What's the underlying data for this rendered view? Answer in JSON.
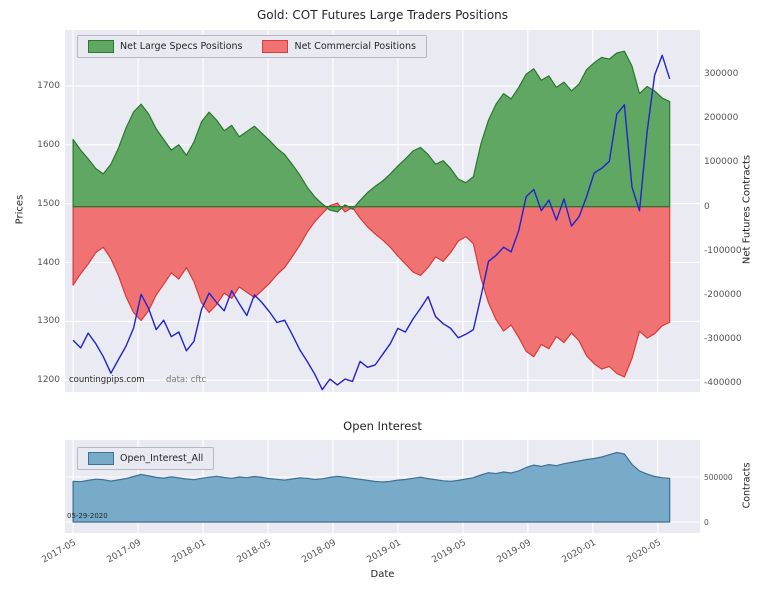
{
  "figure": {
    "title": "Gold: COT Futures Large Traders Positions",
    "subplot2_title": "Open Interest",
    "xlabel": "Date",
    "ylabel_left": "Prices",
    "ylabel_right": "Net Futures Contracts",
    "ylabel_right2": "Contracts",
    "watermark": "countingpips.com",
    "source_note": "data: cftc",
    "date_annotation": "05-29-2020"
  },
  "legend1": [
    "Net Large Specs Positions",
    "Net Commercial Positions"
  ],
  "legend2": [
    "Open_Interest_All"
  ],
  "colors": {
    "plot_bg": "#eaeaf2",
    "grid": "#ffffff",
    "specs_fill": "#5fa763",
    "specs_edge": "#29782d",
    "comm_fill": "#f17272",
    "comm_edge": "#d93a3a",
    "price_line": "#2323cc",
    "oi_fill": "#78aac9",
    "oi_edge": "#3d7096",
    "legend_bg": "#e9e9f1",
    "legend_border": "#b8b8c0",
    "tick_text": "#555555"
  },
  "chart_data": [
    {
      "type": "area",
      "title": "Gold: COT Futures Large Traders Positions",
      "x_unit": "months since 2017-05",
      "x_step_months": 0.465,
      "xlim_months": [
        -0.5,
        38.6
      ],
      "x_tick_positions_months": [
        0,
        4,
        8,
        12,
        16,
        20,
        24,
        28,
        32,
        36
      ],
      "x_tick_labels": [
        "2017-05",
        "2017-09",
        "2018-01",
        "2018-05",
        "2018-09",
        "2019-01",
        "2019-05",
        "2019-09",
        "2020-01",
        "2020-05"
      ],
      "left_axis": {
        "label": "Prices",
        "ylim": [
          1180,
          1795
        ],
        "ticks": [
          1200,
          1300,
          1400,
          1500,
          1600,
          1700
        ]
      },
      "right_axis": {
        "label": "Net Futures Contracts",
        "ylim": [
          -420000,
          400000
        ],
        "ticks": [
          -400000,
          -300000,
          -200000,
          -100000,
          0,
          100000,
          200000,
          300000
        ]
      },
      "annotations": [
        "countingpips.com",
        "data: cftc"
      ],
      "series": [
        {
          "name": "Net Commercial Positions",
          "type": "area",
          "axis": "right",
          "color_key": "comm",
          "values": [
            -178000,
            -152000,
            -130000,
            -104000,
            -92000,
            -118000,
            -156000,
            -204000,
            -240000,
            -258000,
            -236000,
            -200000,
            -176000,
            -150000,
            -164000,
            -138000,
            -170000,
            -218000,
            -240000,
            -222000,
            -196000,
            -208000,
            -182000,
            -194000,
            -206000,
            -190000,
            -174000,
            -154000,
            -138000,
            -114000,
            -88000,
            -58000,
            -34000,
            -16000,
            2000,
            8000,
            -12000,
            -2000,
            -26000,
            -46000,
            -62000,
            -76000,
            -92000,
            -112000,
            -130000,
            -148000,
            -156000,
            -138000,
            -114000,
            -124000,
            -104000,
            -78000,
            -68000,
            -84000,
            -162000,
            -218000,
            -256000,
            -282000,
            -268000,
            -296000,
            -328000,
            -340000,
            -312000,
            -322000,
            -294000,
            -308000,
            -286000,
            -304000,
            -338000,
            -356000,
            -368000,
            -362000,
            -378000,
            -386000,
            -344000,
            -282000,
            -298000,
            -288000,
            -270000,
            -262000
          ]
        },
        {
          "name": "Net Large Specs Positions",
          "type": "area",
          "axis": "right",
          "color_key": "specs",
          "values": [
            152000,
            128000,
            108000,
            86000,
            74000,
            96000,
            132000,
            178000,
            214000,
            232000,
            210000,
            176000,
            152000,
            128000,
            140000,
            116000,
            146000,
            192000,
            214000,
            196000,
            172000,
            184000,
            158000,
            170000,
            182000,
            166000,
            150000,
            132000,
            118000,
            96000,
            72000,
            44000,
            22000,
            6000,
            -8000,
            -12000,
            4000,
            -6000,
            14000,
            32000,
            46000,
            58000,
            74000,
            92000,
            108000,
            126000,
            134000,
            118000,
            96000,
            104000,
            86000,
            62000,
            54000,
            68000,
            142000,
            196000,
            232000,
            256000,
            244000,
            270000,
            300000,
            312000,
            286000,
            296000,
            270000,
            282000,
            262000,
            278000,
            310000,
            326000,
            338000,
            334000,
            348000,
            352000,
            318000,
            256000,
            272000,
            262000,
            246000,
            238000
          ]
        },
        {
          "name": "Gold Price",
          "type": "line",
          "axis": "left",
          "color_key": "price_line",
          "values": [
            1268,
            1255,
            1280,
            1262,
            1240,
            1212,
            1235,
            1258,
            1288,
            1346,
            1322,
            1286,
            1302,
            1274,
            1282,
            1250,
            1266,
            1320,
            1348,
            1332,
            1318,
            1352,
            1330,
            1310,
            1345,
            1332,
            1316,
            1298,
            1302,
            1278,
            1252,
            1232,
            1210,
            1184,
            1202,
            1192,
            1202,
            1198,
            1232,
            1222,
            1226,
            1244,
            1262,
            1288,
            1282,
            1304,
            1322,
            1342,
            1308,
            1296,
            1288,
            1272,
            1278,
            1286,
            1342,
            1402,
            1412,
            1426,
            1418,
            1454,
            1512,
            1524,
            1488,
            1506,
            1472,
            1508,
            1462,
            1478,
            1512,
            1552,
            1560,
            1572,
            1652,
            1668,
            1528,
            1488,
            1622,
            1718,
            1752,
            1712
          ]
        }
      ]
    },
    {
      "type": "area",
      "title": "Open Interest",
      "x_unit": "months since 2017-05",
      "x_step_months": 0.465,
      "xlim_months": [
        -0.5,
        38.6
      ],
      "right_axis": {
        "label": "Contracts",
        "ylim": [
          -122000,
          911000
        ],
        "ticks": [
          0,
          500000
        ]
      },
      "annotations": [
        "05-29-2020"
      ],
      "series": [
        {
          "name": "Open_Interest_All",
          "type": "area",
          "axis": "right",
          "color_key": "oi",
          "values": [
            452000,
            448000,
            462000,
            476000,
            470000,
            455000,
            468000,
            482000,
            506000,
            528000,
            512000,
            496000,
            488000,
            502000,
            490000,
            478000,
            470000,
            486000,
            498000,
            508000,
            494000,
            486000,
            500000,
            492000,
            506000,
            496000,
            482000,
            474000,
            466000,
            478000,
            490000,
            486000,
            472000,
            480000,
            496000,
            508000,
            498000,
            486000,
            474000,
            462000,
            450000,
            444000,
            452000,
            466000,
            472000,
            486000,
            498000,
            482000,
            470000,
            458000,
            452000,
            462000,
            478000,
            492000,
            522000,
            548000,
            538000,
            556000,
            544000,
            568000,
            606000,
            632000,
            618000,
            638000,
            626000,
            648000,
            662000,
            678000,
            694000,
            706000,
            722000,
            748000,
            772000,
            756000,
            640000,
            568000,
            532000,
            506000,
            492000,
            486000
          ]
        }
      ]
    }
  ]
}
